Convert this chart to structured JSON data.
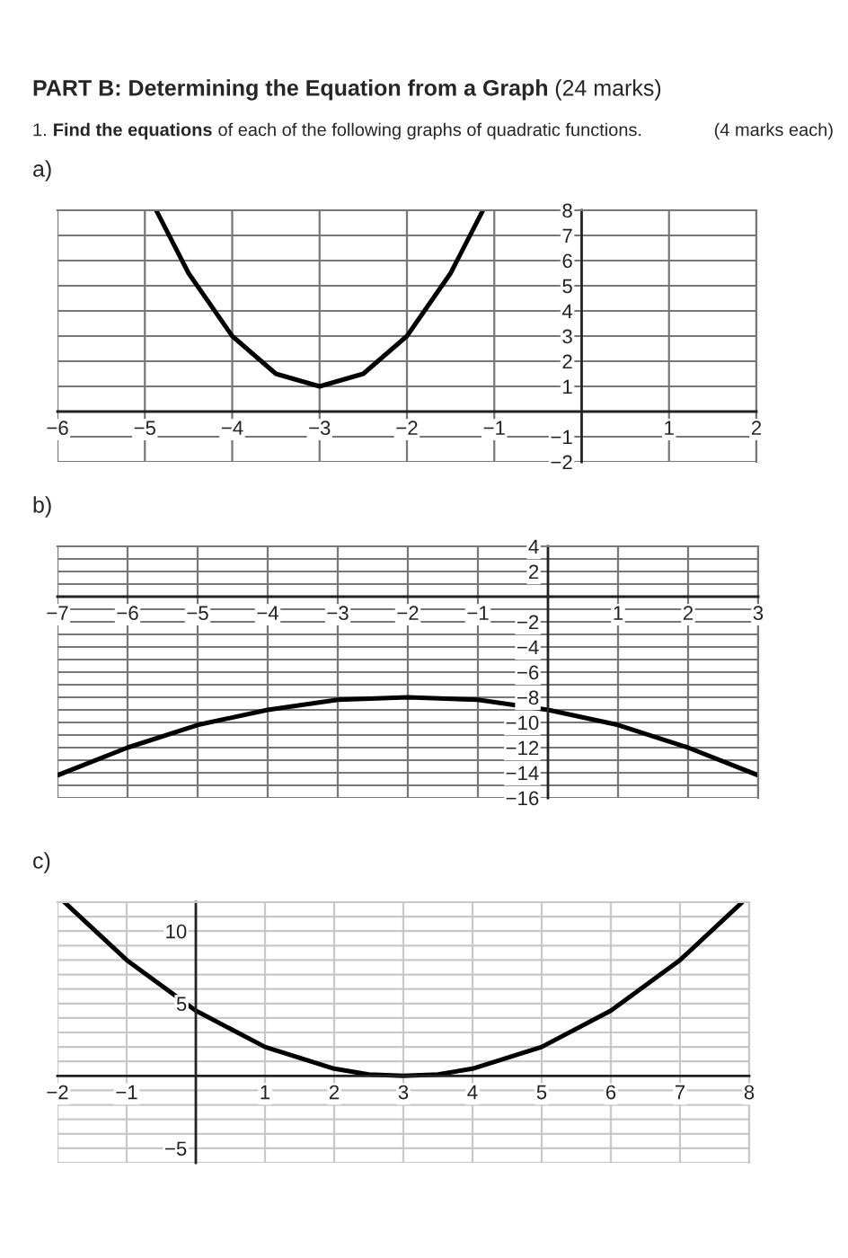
{
  "chart_data": [
    {
      "type": "line",
      "title": "a)",
      "annotations": [
        "PART B: Determining the Equation from a Graph",
        "(24 marks)",
        "1.",
        "Find the equations",
        "of each of the following graphs of quadratic functions.",
        "(4 marks each)"
      ],
      "series": [
        {
          "color": "#000000",
          "x": [
            -4.87,
            -4.5,
            -4,
            -3.5,
            -3,
            -2.5,
            -2,
            -1.5,
            -1.13
          ],
          "values": [
            8,
            5.5,
            3,
            1.5,
            1,
            1.5,
            3,
            5.5,
            8
          ]
        }
      ],
      "xlim": [
        -6,
        2
      ],
      "ylim": [
        -2,
        8
      ],
      "xticks": [
        -6,
        -5,
        -4,
        -3,
        -2,
        -1,
        1,
        2
      ],
      "yticks": [
        -2,
        -1,
        1,
        2,
        3,
        4,
        5,
        6,
        7,
        8
      ],
      "grid": true,
      "marker": "none",
      "line_style": "solid"
    },
    {
      "type": "line",
      "title": "b)",
      "series": [
        {
          "color": "#000000",
          "x": [
            -7,
            -6,
            -5,
            -4,
            -3,
            -2,
            -1,
            0,
            1,
            2,
            3
          ],
          "values": [
            -14.2,
            -12,
            -10.2,
            -9,
            -8.2,
            -8,
            -8.2,
            -9,
            -10.2,
            -12,
            -14.2
          ]
        }
      ],
      "xlim": [
        -7,
        3
      ],
      "ylim": [
        -16,
        4
      ],
      "xticks": [
        -7,
        -6,
        -5,
        -4,
        -3,
        -2,
        -1,
        1,
        2,
        3
      ],
      "yticks": [
        -16,
        {
          "value": -15,
          "label": null
        },
        -14,
        {
          "value": -13,
          "label": null
        },
        -12,
        {
          "value": -11,
          "label": null
        },
        -10,
        {
          "value": -9,
          "label": null
        },
        -8,
        {
          "value": -7,
          "label": null
        },
        -6,
        {
          "value": -5,
          "label": null
        },
        -4,
        {
          "value": -3,
          "label": null
        },
        -2,
        {
          "value": -1,
          "label": null
        },
        {
          "value": 1,
          "label": null
        },
        2,
        {
          "value": 3,
          "label": null
        },
        4
      ],
      "grid": true,
      "marker": "none",
      "line_style": "solid"
    },
    {
      "type": "line",
      "title": "c)",
      "series": [
        {
          "color": "#000000",
          "x": [
            -1.9,
            -1,
            0,
            1,
            2,
            2.5,
            3,
            3.5,
            4,
            5,
            6,
            7,
            7.9
          ],
          "values": [
            12,
            8,
            4.5,
            2,
            0.5,
            0.1,
            0,
            0.1,
            0.5,
            2,
            4.5,
            8,
            12
          ]
        }
      ],
      "xlim": [
        -2,
        8
      ],
      "ylim": [
        -6,
        12
      ],
      "xticks": [
        -2,
        -1,
        1,
        2,
        3,
        4,
        5,
        6,
        7,
        8
      ],
      "yticks": [
        {
          "value": -6,
          "label": null
        },
        -5,
        {
          "value": -4,
          "label": null
        },
        {
          "value": -3,
          "label": null
        },
        {
          "value": -2,
          "label": null
        },
        {
          "value": -1,
          "label": null
        },
        {
          "value": 1,
          "label": null
        },
        {
          "value": 2,
          "label": null
        },
        {
          "value": 3,
          "label": null
        },
        {
          "value": 4,
          "label": null
        },
        5,
        {
          "value": 6,
          "label": null
        },
        {
          "value": 7,
          "label": null
        },
        {
          "value": 8,
          "label": null
        },
        {
          "value": 9,
          "label": null
        },
        10,
        {
          "value": 11,
          "label": null
        },
        {
          "value": 12,
          "label": null
        }
      ],
      "grid": true,
      "marker": "none",
      "line_style": "solid"
    }
  ]
}
